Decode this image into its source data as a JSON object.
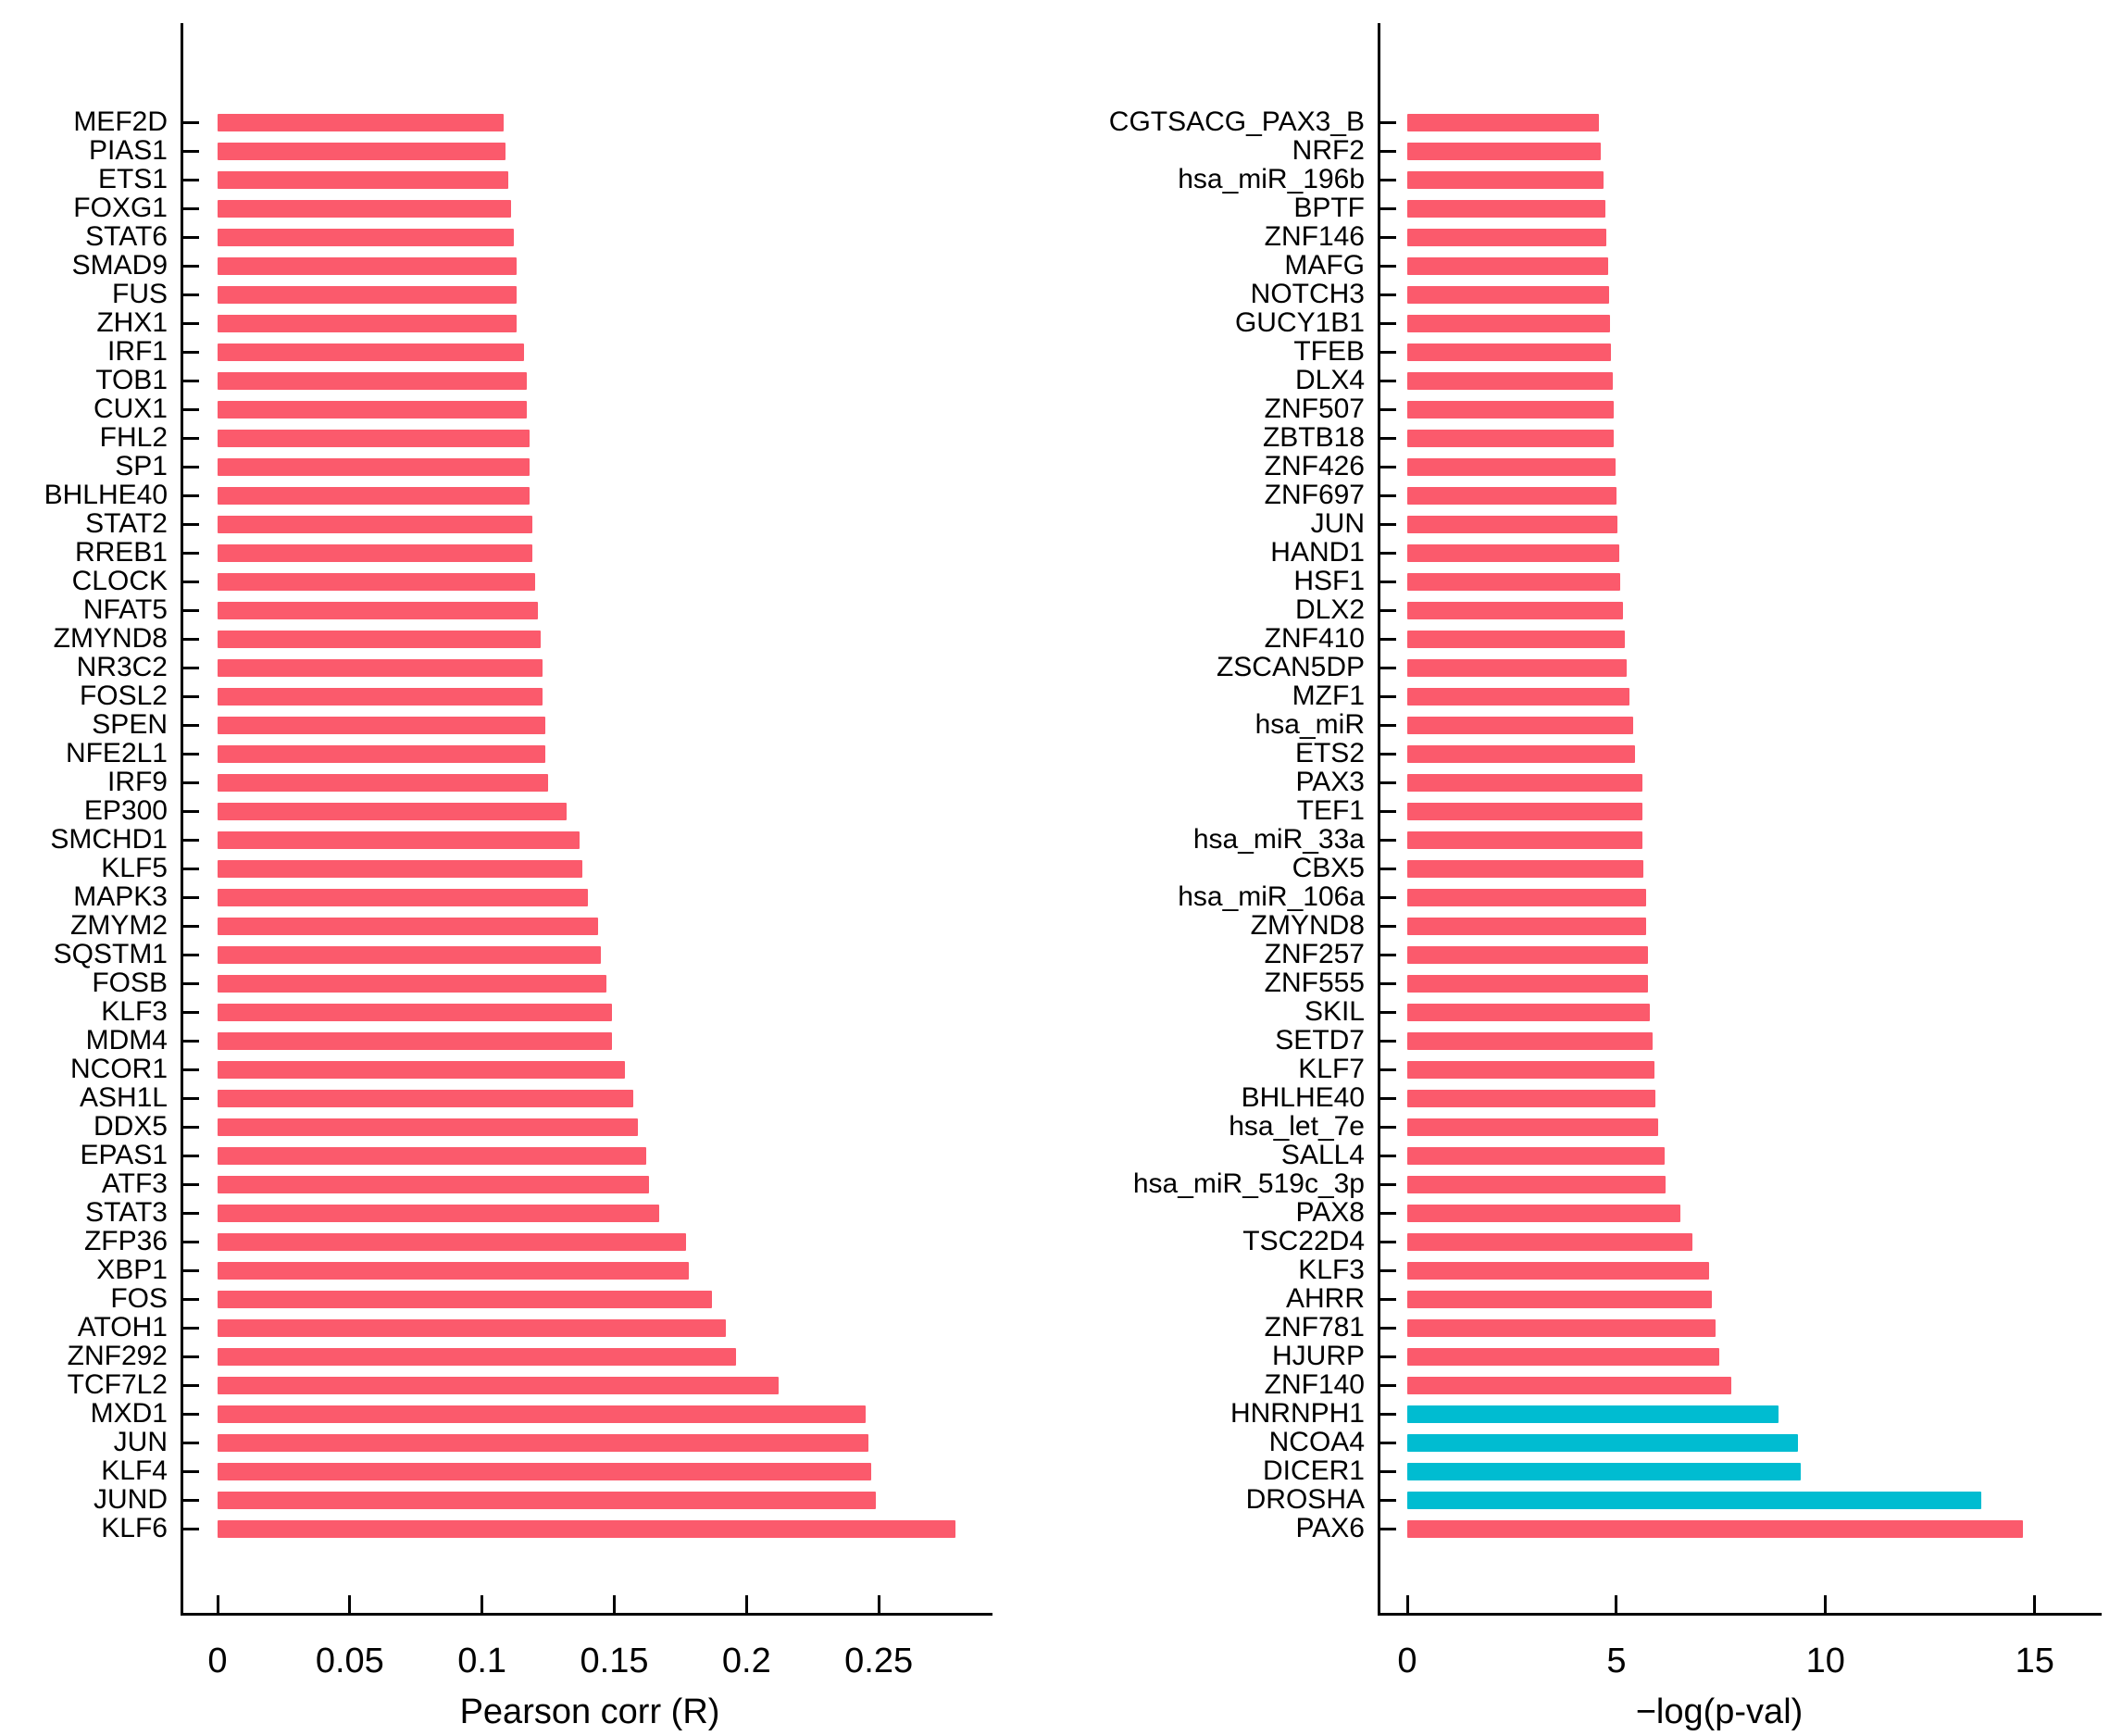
{
  "figure": {
    "background": "#ffffff",
    "default_bar_color": "#FB5A6C",
    "highlight_bar_color": "#00BCD1"
  },
  "chart_data": [
    {
      "type": "bar",
      "orientation": "horizontal",
      "title": "",
      "xlabel": "Pearson corr (R)",
      "ylabel": "",
      "xlim": [
        0,
        0.293
      ],
      "xticks": [
        0,
        0.05,
        0.1,
        0.15,
        0.2,
        0.25
      ],
      "xtick_labels": [
        "0",
        "0.05",
        "0.1",
        "0.15",
        "0.2",
        "0.25"
      ],
      "grid": false,
      "legend": "none",
      "bar_color": "#FB5A6C",
      "categories": [
        "MEF2D",
        "PIAS1",
        "ETS1",
        "FOXG1",
        "STAT6",
        "SMAD9",
        "FUS",
        "ZHX1",
        "IRF1",
        "TOB1",
        "CUX1",
        "FHL2",
        "SP1",
        "BHLHE40",
        "STAT2",
        "RREB1",
        "CLOCK",
        "NFAT5",
        "ZMYND8",
        "NR3C2",
        "FOSL2",
        "SPEN",
        "NFE2L1",
        "IRF9",
        "EP300",
        "SMCHD1",
        "KLF5",
        "MAPK3",
        "ZMYM2",
        "SQSTM1",
        "FOSB",
        "KLF3",
        "MDM4",
        "NCOR1",
        "ASH1L",
        "DDX5",
        "EPAS1",
        "ATF3",
        "STAT3",
        "ZFP36",
        "XBP1",
        "FOS",
        "ATOH1",
        "ZNF292",
        "TCF7L2",
        "MXD1",
        "JUN",
        "KLF4",
        "JUND",
        "KLF6"
      ],
      "values": [
        0.108,
        0.109,
        0.11,
        0.111,
        0.112,
        0.113,
        0.113,
        0.113,
        0.116,
        0.117,
        0.117,
        0.118,
        0.118,
        0.118,
        0.119,
        0.119,
        0.12,
        0.121,
        0.122,
        0.123,
        0.123,
        0.124,
        0.124,
        0.125,
        0.132,
        0.137,
        0.138,
        0.14,
        0.144,
        0.145,
        0.147,
        0.149,
        0.149,
        0.154,
        0.157,
        0.159,
        0.162,
        0.163,
        0.167,
        0.177,
        0.178,
        0.187,
        0.192,
        0.196,
        0.212,
        0.245,
        0.246,
        0.247,
        0.249,
        0.279
      ],
      "bar_colors": []
    },
    {
      "type": "bar",
      "orientation": "horizontal",
      "title": "",
      "xlabel": "−log(p-val)",
      "ylabel": "",
      "xlim": [
        0,
        16.6
      ],
      "xticks": [
        0,
        5,
        10,
        15
      ],
      "xtick_labels": [
        "0",
        "5",
        "10",
        "15"
      ],
      "grid": false,
      "legend": "none",
      "bar_color": "#FB5A6C",
      "highlighted_categories": [
        "HNRNPH1",
        "NCOA4",
        "DICER1",
        "DROSHA"
      ],
      "categories": [
        "CGTSACG_PAX3_B",
        "NRF2",
        "hsa_miR_196b",
        "BPTF",
        "ZNF146",
        "MAFG",
        "NOTCH3",
        "GUCY1B1",
        "TFEB",
        "DLX4",
        "ZNF507",
        "ZBTB18",
        "ZNF426",
        "ZNF697",
        "JUN",
        "HAND1",
        "HSF1",
        "DLX2",
        "ZNF410",
        "ZSCAN5DP",
        "MZF1",
        "hsa_miR",
        "ETS2",
        "PAX3",
        "TEF1",
        "hsa_miR_33a",
        "CBX5",
        "hsa_miR_106a",
        "ZMYND8",
        "ZNF257",
        "ZNF555",
        "SKIL",
        "SETD7",
        "KLF7",
        "BHLHE40",
        "hsa_let_7e",
        "SALL4",
        "hsa_miR_519c_3p",
        "PAX8",
        "TSC22D4",
        "KLF3",
        "AHRR",
        "ZNF781",
        "HJURP",
        "ZNF140",
        "HNRNPH1",
        "NCOA4",
        "DICER1",
        "DROSHA",
        "PAX6"
      ],
      "values": [
        4.59,
        4.63,
        4.7,
        4.73,
        4.75,
        4.8,
        4.83,
        4.84,
        4.86,
        4.91,
        4.94,
        4.94,
        4.98,
        5.0,
        5.03,
        5.06,
        5.08,
        5.16,
        5.2,
        5.25,
        5.31,
        5.4,
        5.44,
        5.61,
        5.62,
        5.62,
        5.65,
        5.7,
        5.71,
        5.75,
        5.76,
        5.8,
        5.87,
        5.9,
        5.94,
        6.0,
        6.15,
        6.17,
        6.53,
        6.81,
        7.21,
        7.28,
        7.38,
        7.46,
        7.75,
        8.88,
        9.35,
        9.4,
        13.73,
        14.71
      ],
      "bar_colors": [
        "#FB5A6C",
        "#FB5A6C",
        "#FB5A6C",
        "#FB5A6C",
        "#FB5A6C",
        "#FB5A6C",
        "#FB5A6C",
        "#FB5A6C",
        "#FB5A6C",
        "#FB5A6C",
        "#FB5A6C",
        "#FB5A6C",
        "#FB5A6C",
        "#FB5A6C",
        "#FB5A6C",
        "#FB5A6C",
        "#FB5A6C",
        "#FB5A6C",
        "#FB5A6C",
        "#FB5A6C",
        "#FB5A6C",
        "#FB5A6C",
        "#FB5A6C",
        "#FB5A6C",
        "#FB5A6C",
        "#FB5A6C",
        "#FB5A6C",
        "#FB5A6C",
        "#FB5A6C",
        "#FB5A6C",
        "#FB5A6C",
        "#FB5A6C",
        "#FB5A6C",
        "#FB5A6C",
        "#FB5A6C",
        "#FB5A6C",
        "#FB5A6C",
        "#FB5A6C",
        "#FB5A6C",
        "#FB5A6C",
        "#FB5A6C",
        "#FB5A6C",
        "#FB5A6C",
        "#FB5A6C",
        "#FB5A6C",
        "#00BCD1",
        "#00BCD1",
        "#00BCD1",
        "#00BCD1",
        "#FB5A6C"
      ]
    }
  ]
}
